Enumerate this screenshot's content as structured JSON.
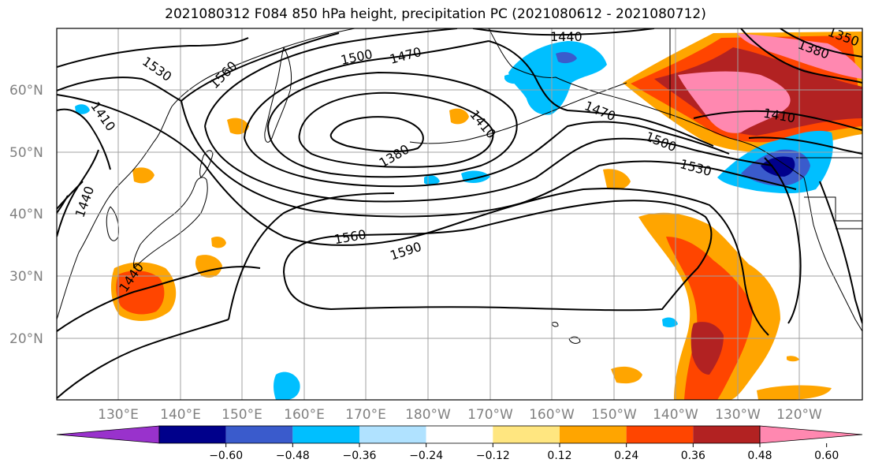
{
  "title": "2021080312 F084 850 hPa height, precipitation PC (2021080612 - 2021080712)",
  "lat_labels": [
    "60°N",
    "50°N",
    "40°N",
    "30°N",
    "20°N"
  ],
  "lon_labels": [
    "130°E",
    "140°E",
    "150°E",
    "160°E",
    "170°E",
    "180°W",
    "170°W",
    "160°W",
    "150°W",
    "140°W",
    "130°W",
    "120°W"
  ],
  "contour_labels": [
    "1440",
    "1500",
    "1470",
    "1560",
    "1530",
    "1380",
    "1410",
    "1470",
    "1410",
    "1380",
    "1500",
    "1530",
    "1560",
    "1590",
    "1440",
    "1440",
    "1410",
    "1350"
  ],
  "colorbar": {
    "ticks": [
      "−0.60",
      "−0.48",
      "−0.36",
      "−0.24",
      "−0.12",
      "0.12",
      "0.24",
      "0.36",
      "0.48",
      "0.60"
    ],
    "colors": [
      "#9932cc",
      "#00008b",
      "#3a5bcc",
      "#00bfff",
      "#b0e2ff",
      "#ffffff",
      "#ffe680",
      "#ffa500",
      "#ff4500",
      "#b22222",
      "#ff88b0"
    ]
  }
}
